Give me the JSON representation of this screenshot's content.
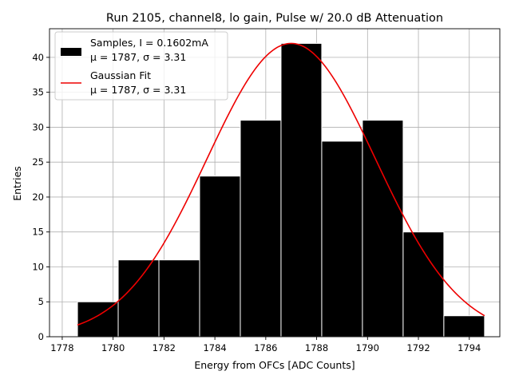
{
  "chart_data": {
    "type": "bar",
    "title": "Run 2105, channel8, lo gain, Pulse w/ 20.0 dB Attenuation",
    "xlabel": "Energy from OFCs [ADC Counts]",
    "ylabel": "Entries",
    "xlim": [
      1777.5,
      1795.2
    ],
    "ylim": [
      0,
      44.1
    ],
    "xticks": [
      1778,
      1780,
      1782,
      1784,
      1786,
      1788,
      1790,
      1792,
      1794
    ],
    "yticks": [
      0,
      5,
      10,
      15,
      20,
      25,
      30,
      35,
      40
    ],
    "grid": true,
    "legend_position": "upper-left",
    "histogram": {
      "name": "Samples, I = 0.1602mA",
      "stats": "μ = 1787, σ = 3.31",
      "color": "#000000",
      "bin_edges": [
        1778.6,
        1780.2,
        1781.8,
        1783.4,
        1785.0,
        1786.6,
        1788.2,
        1789.8,
        1791.4,
        1793.0,
        1794.6
      ],
      "counts": [
        5,
        11,
        11,
        23,
        31,
        42,
        28,
        31,
        15,
        3
      ]
    },
    "fit": {
      "name": "Gaussian Fit",
      "stats": "μ = 1787, σ = 3.31",
      "color": "#ee0000",
      "amplitude": 42,
      "mean": 1787.0,
      "sigma": 3.31,
      "x_range": [
        1778.6,
        1794.6
      ]
    }
  }
}
